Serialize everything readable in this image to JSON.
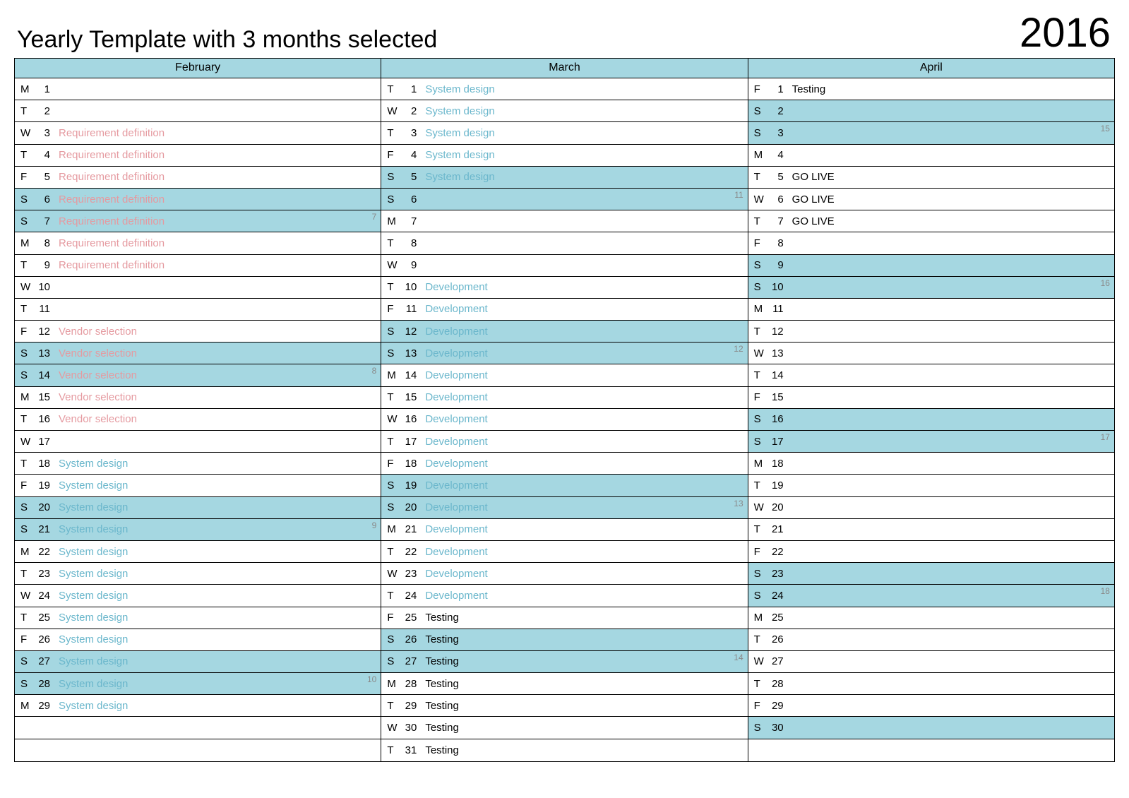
{
  "title": "Yearly Template with 3 months selected",
  "year": "2016",
  "colors": {
    "header_bg": "#a5d7e1",
    "weekend_bg": "#a5d7e1",
    "weekday_bg": "#ffffff",
    "border": "#000000",
    "text": "#000000",
    "event_pink": "#e59aa0",
    "event_blue": "#6bb7cc",
    "event_black": "#000000",
    "weeknum": "#8a8a8a"
  },
  "row_count": 31,
  "months": [
    {
      "name": "February",
      "days": [
        {
          "dow": "M",
          "num": "1"
        },
        {
          "dow": "T",
          "num": "2"
        },
        {
          "dow": "W",
          "num": "3",
          "event": "Requirement definition",
          "event_color": "event_pink"
        },
        {
          "dow": "T",
          "num": "4",
          "event": "Requirement definition",
          "event_color": "event_pink"
        },
        {
          "dow": "F",
          "num": "5",
          "event": "Requirement definition",
          "event_color": "event_pink"
        },
        {
          "dow": "S",
          "num": "6",
          "event": "Requirement definition",
          "event_color": "event_pink",
          "weekend": true
        },
        {
          "dow": "S",
          "num": "7",
          "event": "Requirement definition",
          "event_color": "event_pink",
          "weekend": true,
          "week": "7"
        },
        {
          "dow": "M",
          "num": "8",
          "event": "Requirement definition",
          "event_color": "event_pink"
        },
        {
          "dow": "T",
          "num": "9",
          "event": "Requirement definition",
          "event_color": "event_pink"
        },
        {
          "dow": "W",
          "num": "10"
        },
        {
          "dow": "T",
          "num": "11"
        },
        {
          "dow": "F",
          "num": "12",
          "event": "Vendor selection",
          "event_color": "event_pink"
        },
        {
          "dow": "S",
          "num": "13",
          "event": "Vendor selection",
          "event_color": "event_pink",
          "weekend": true
        },
        {
          "dow": "S",
          "num": "14",
          "event": "Vendor selection",
          "event_color": "event_pink",
          "weekend": true,
          "week": "8"
        },
        {
          "dow": "M",
          "num": "15",
          "event": "Vendor selection",
          "event_color": "event_pink"
        },
        {
          "dow": "T",
          "num": "16",
          "event": "Vendor selection",
          "event_color": "event_pink"
        },
        {
          "dow": "W",
          "num": "17"
        },
        {
          "dow": "T",
          "num": "18",
          "event": "System design",
          "event_color": "event_blue"
        },
        {
          "dow": "F",
          "num": "19",
          "event": "System design",
          "event_color": "event_blue"
        },
        {
          "dow": "S",
          "num": "20",
          "event": "System design",
          "event_color": "event_blue",
          "weekend": true
        },
        {
          "dow": "S",
          "num": "21",
          "event": "System design",
          "event_color": "event_blue",
          "weekend": true,
          "week": "9"
        },
        {
          "dow": "M",
          "num": "22",
          "event": "System design",
          "event_color": "event_blue"
        },
        {
          "dow": "T",
          "num": "23",
          "event": "System design",
          "event_color": "event_blue"
        },
        {
          "dow": "W",
          "num": "24",
          "event": "System design",
          "event_color": "event_blue"
        },
        {
          "dow": "T",
          "num": "25",
          "event": "System design",
          "event_color": "event_blue"
        },
        {
          "dow": "F",
          "num": "26",
          "event": "System design",
          "event_color": "event_blue"
        },
        {
          "dow": "S",
          "num": "27",
          "event": "System design",
          "event_color": "event_blue",
          "weekend": true
        },
        {
          "dow": "S",
          "num": "28",
          "event": "System design",
          "event_color": "event_blue",
          "weekend": true,
          "week": "10"
        },
        {
          "dow": "M",
          "num": "29",
          "event": "System design",
          "event_color": "event_blue"
        }
      ]
    },
    {
      "name": "March",
      "days": [
        {
          "dow": "T",
          "num": "1",
          "event": "System design",
          "event_color": "event_blue"
        },
        {
          "dow": "W",
          "num": "2",
          "event": "System design",
          "event_color": "event_blue"
        },
        {
          "dow": "T",
          "num": "3",
          "event": "System design",
          "event_color": "event_blue"
        },
        {
          "dow": "F",
          "num": "4",
          "event": "System design",
          "event_color": "event_blue"
        },
        {
          "dow": "S",
          "num": "5",
          "event": "System design",
          "event_color": "event_blue",
          "weekend": true
        },
        {
          "dow": "S",
          "num": "6",
          "weekend": true,
          "week": "11"
        },
        {
          "dow": "M",
          "num": "7"
        },
        {
          "dow": "T",
          "num": "8"
        },
        {
          "dow": "W",
          "num": "9"
        },
        {
          "dow": "T",
          "num": "10",
          "event": "Development",
          "event_color": "event_blue"
        },
        {
          "dow": "F",
          "num": "11",
          "event": "Development",
          "event_color": "event_blue"
        },
        {
          "dow": "S",
          "num": "12",
          "event": "Development",
          "event_color": "event_blue",
          "weekend": true
        },
        {
          "dow": "S",
          "num": "13",
          "event": "Development",
          "event_color": "event_blue",
          "weekend": true,
          "week": "12"
        },
        {
          "dow": "M",
          "num": "14",
          "event": "Development",
          "event_color": "event_blue"
        },
        {
          "dow": "T",
          "num": "15",
          "event": "Development",
          "event_color": "event_blue"
        },
        {
          "dow": "W",
          "num": "16",
          "event": "Development",
          "event_color": "event_blue"
        },
        {
          "dow": "T",
          "num": "17",
          "event": "Development",
          "event_color": "event_blue"
        },
        {
          "dow": "F",
          "num": "18",
          "event": "Development",
          "event_color": "event_blue"
        },
        {
          "dow": "S",
          "num": "19",
          "event": "Development",
          "event_color": "event_blue",
          "weekend": true
        },
        {
          "dow": "S",
          "num": "20",
          "event": "Development",
          "event_color": "event_blue",
          "weekend": true,
          "week": "13"
        },
        {
          "dow": "M",
          "num": "21",
          "event": "Development",
          "event_color": "event_blue"
        },
        {
          "dow": "T",
          "num": "22",
          "event": "Development",
          "event_color": "event_blue"
        },
        {
          "dow": "W",
          "num": "23",
          "event": "Development",
          "event_color": "event_blue"
        },
        {
          "dow": "T",
          "num": "24",
          "event": "Development",
          "event_color": "event_blue"
        },
        {
          "dow": "F",
          "num": "25",
          "event": "Testing",
          "event_color": "event_black"
        },
        {
          "dow": "S",
          "num": "26",
          "event": "Testing",
          "event_color": "event_black",
          "weekend": true
        },
        {
          "dow": "S",
          "num": "27",
          "event": "Testing",
          "event_color": "event_black",
          "weekend": true,
          "week": "14"
        },
        {
          "dow": "M",
          "num": "28",
          "event": "Testing",
          "event_color": "event_black"
        },
        {
          "dow": "T",
          "num": "29",
          "event": "Testing",
          "event_color": "event_black"
        },
        {
          "dow": "W",
          "num": "30",
          "event": "Testing",
          "event_color": "event_black"
        },
        {
          "dow": "T",
          "num": "31",
          "event": "Testing",
          "event_color": "event_black"
        }
      ]
    },
    {
      "name": "April",
      "days": [
        {
          "dow": "F",
          "num": "1",
          "event": "Testing",
          "event_color": "event_black"
        },
        {
          "dow": "S",
          "num": "2",
          "weekend": true
        },
        {
          "dow": "S",
          "num": "3",
          "weekend": true,
          "week": "15"
        },
        {
          "dow": "M",
          "num": "4"
        },
        {
          "dow": "T",
          "num": "5",
          "event": "GO LIVE",
          "event_color": "event_black"
        },
        {
          "dow": "W",
          "num": "6",
          "event": "GO LIVE",
          "event_color": "event_black"
        },
        {
          "dow": "T",
          "num": "7",
          "event": "GO LIVE",
          "event_color": "event_black"
        },
        {
          "dow": "F",
          "num": "8"
        },
        {
          "dow": "S",
          "num": "9",
          "weekend": true
        },
        {
          "dow": "S",
          "num": "10",
          "weekend": true,
          "week": "16"
        },
        {
          "dow": "M",
          "num": "11"
        },
        {
          "dow": "T",
          "num": "12"
        },
        {
          "dow": "W",
          "num": "13"
        },
        {
          "dow": "T",
          "num": "14"
        },
        {
          "dow": "F",
          "num": "15"
        },
        {
          "dow": "S",
          "num": "16",
          "weekend": true
        },
        {
          "dow": "S",
          "num": "17",
          "weekend": true,
          "week": "17"
        },
        {
          "dow": "M",
          "num": "18"
        },
        {
          "dow": "T",
          "num": "19"
        },
        {
          "dow": "W",
          "num": "20"
        },
        {
          "dow": "T",
          "num": "21"
        },
        {
          "dow": "F",
          "num": "22"
        },
        {
          "dow": "S",
          "num": "23",
          "weekend": true
        },
        {
          "dow": "S",
          "num": "24",
          "weekend": true,
          "week": "18"
        },
        {
          "dow": "M",
          "num": "25"
        },
        {
          "dow": "T",
          "num": "26"
        },
        {
          "dow": "W",
          "num": "27"
        },
        {
          "dow": "T",
          "num": "28"
        },
        {
          "dow": "F",
          "num": "29"
        },
        {
          "dow": "S",
          "num": "30",
          "weekend": true
        }
      ]
    }
  ]
}
